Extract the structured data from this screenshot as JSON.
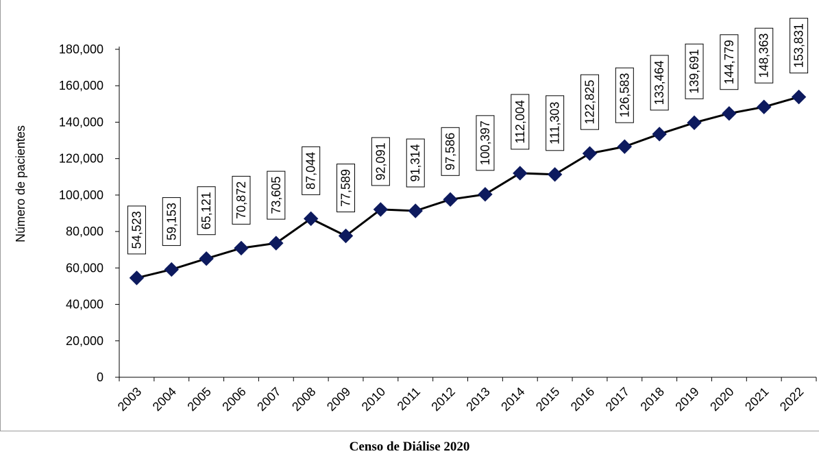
{
  "chart_data": {
    "type": "line",
    "x": [
      "2003",
      "2004",
      "2005",
      "2006",
      "2007",
      "2008",
      "2009",
      "2010",
      "2011",
      "2012",
      "2013",
      "2014",
      "2015",
      "2016",
      "2017",
      "2018",
      "2019",
      "2020",
      "2021",
      "2022"
    ],
    "series": [
      {
        "values": [
          54523,
          59153,
          65121,
          70872,
          73605,
          87044,
          77589,
          92091,
          91314,
          97586,
          100397,
          112004,
          111303,
          122825,
          126583,
          133464,
          139691,
          144779,
          148363,
          153831
        ],
        "color": "#000000",
        "marker": "diamond",
        "marker_color": "#0d1a5e"
      }
    ],
    "data_labels": [
      "54,523",
      "59,153",
      "65,121",
      "70,872",
      "73,605",
      "87,044",
      "77,589",
      "92,091",
      "91,314",
      "97,586",
      "100,397",
      "112,004",
      "111,303",
      "122,825",
      "126,583",
      "133,464",
      "139,691",
      "144,779",
      "148,363",
      "153,831"
    ],
    "ylabel": "Número de pacientes",
    "xlabel": "",
    "ylim": [
      0,
      180000
    ],
    "yticks": [
      "0",
      "20,000",
      "40,000",
      "60,000",
      "80,000",
      "100,000",
      "120,000",
      "140,000",
      "160,000",
      "180,000"
    ],
    "grid": false
  },
  "caption": "Censo de Diálise 2020"
}
